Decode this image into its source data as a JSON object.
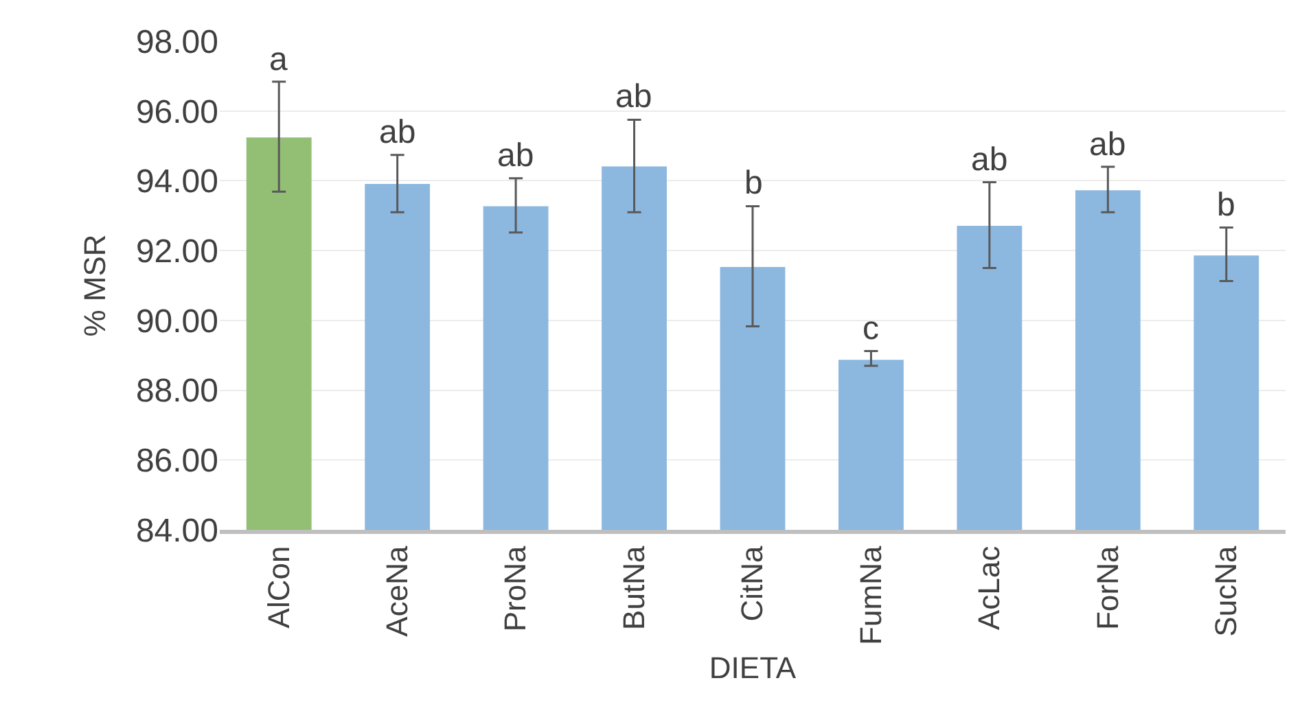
{
  "chart_data": {
    "type": "bar",
    "xlabel": "DIETA",
    "ylabel": "% MSR",
    "categories": [
      "AlCon",
      "AceNa",
      "ProNa",
      "ButNa",
      "CitNa",
      "FumNa",
      "AcLac",
      "ForNa",
      "SucNa"
    ],
    "values": [
      95.24,
      93.91,
      93.27,
      94.41,
      91.53,
      88.87,
      92.71,
      93.73,
      91.86
    ],
    "colors": [
      "#93bf75",
      "#8cb8e0",
      "#8cb8e0",
      "#8cb8e0",
      "#8cb8e0",
      "#8cb8e0",
      "#8cb8e0",
      "#8cb8e0",
      "#8cb8e0"
    ],
    "errors": [
      [
        93.69,
        96.84
      ],
      [
        93.1,
        94.74
      ],
      [
        92.52,
        94.07
      ],
      [
        93.1,
        95.75
      ],
      [
        89.83,
        93.27
      ],
      [
        88.7,
        89.12
      ],
      [
        91.5,
        93.96
      ],
      [
        93.1,
        94.4
      ],
      [
        91.13,
        92.66
      ]
    ],
    "ylim": [
      84,
      98
    ],
    "yticks": [
      {
        "value": 84,
        "label": "84.00"
      },
      {
        "value": 86,
        "label": "86.00"
      },
      {
        "value": 88,
        "label": "88.00"
      },
      {
        "value": 90,
        "label": "90.00"
      },
      {
        "value": 92,
        "label": "92.00"
      },
      {
        "value": 94,
        "label": "94.00"
      },
      {
        "value": 96,
        "label": "96.00"
      },
      {
        "value": 98,
        "label": "98.00"
      }
    ],
    "grid": "y",
    "annotations": [
      {
        "text": "a",
        "x": "AlCon",
        "y": 96.84
      },
      {
        "text": "ab",
        "x": "AceNa",
        "y": 94.74
      },
      {
        "text": "ab",
        "x": "ProNa",
        "y": 94.07
      },
      {
        "text": "ab",
        "x": "ButNa",
        "y": 95.75
      },
      {
        "text": "b",
        "x": "CitNa",
        "y": 93.27
      },
      {
        "text": "c",
        "x": "FumNa",
        "y": 89.12
      },
      {
        "text": "ab",
        "x": "AcLac",
        "y": 93.96
      },
      {
        "text": "ab",
        "x": "ForNa",
        "y": 94.4
      },
      {
        "text": "b",
        "x": "SucNa",
        "y": 92.66
      }
    ]
  }
}
